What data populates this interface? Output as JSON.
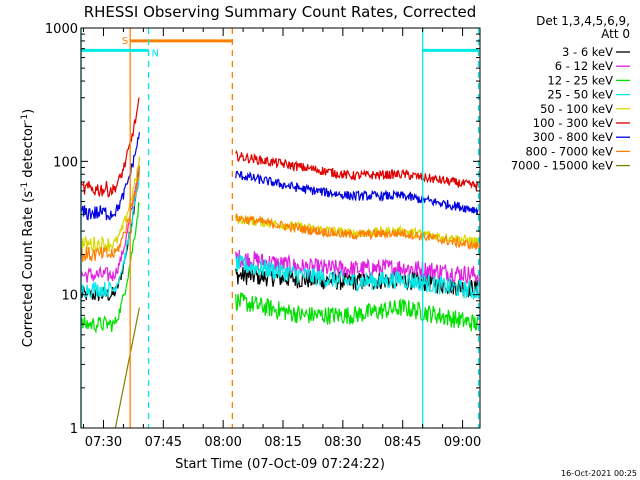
{
  "chart_data": {
    "type": "line",
    "title": "RHESSI Observing Summary Count Rates, Corrected",
    "xlabel": "Start Time (07-Oct-09 07:24:22)",
    "ylabel": "Corrected Count Rate (s",
    "ylabel_sup1": "-1",
    "ylabel_mid": " detector",
    "ylabel_sup2": "-1",
    "ylabel_end": ")",
    "yscale": "log",
    "ylim": [
      1,
      1000
    ],
    "xlim_minutes": [
      -5.63,
      94.37
    ],
    "x_ticks": [
      {
        "label": "07:30",
        "minute": 0
      },
      {
        "label": "07:45",
        "minute": 15
      },
      {
        "label": "08:00",
        "minute": 30
      },
      {
        "label": "08:15",
        "minute": 45
      },
      {
        "label": "08:30",
        "minute": 60
      },
      {
        "label": "08:45",
        "minute": 75
      },
      {
        "label": "09:00",
        "minute": 90
      }
    ],
    "y_ticks": [
      {
        "label": "1",
        "value": 1
      },
      {
        "label": "10",
        "value": 10
      },
      {
        "label": "100",
        "value": 100
      },
      {
        "label": "1000",
        "value": 1000
      }
    ],
    "legend": {
      "placement": "right",
      "header": [
        "Det 1,3,4,5,6,9,",
        "Att 0"
      ]
    },
    "series": [
      {
        "name": "3 - 6 keV",
        "color": "#000000",
        "pre": 10,
        "peak": 90,
        "post": [
          14,
          13,
          12.5,
          13,
          11
        ]
      },
      {
        "name": "6 - 12 keV",
        "color": "#e020e0",
        "pre": 14,
        "peak": 100,
        "post": [
          19,
          16,
          15.5,
          16,
          14
        ]
      },
      {
        "name": "12 - 25 keV",
        "color": "#00e000",
        "pre": 6,
        "peak": 50,
        "post": [
          9,
          7,
          7,
          8,
          6
        ]
      },
      {
        "name": "25 - 50 keV",
        "color": "#00e8e8",
        "pre": 11,
        "peak": 80,
        "post": [
          17,
          14,
          12.5,
          13,
          10.5
        ]
      },
      {
        "name": "50 - 100 keV",
        "color": "#d8d800",
        "pre": 24,
        "peak": 100,
        "post": [
          37,
          32,
          29,
          30,
          25
        ]
      },
      {
        "name": "100 - 300 keV",
        "color": "#e00000",
        "pre": 62,
        "peak": 290,
        "post": [
          110,
          90,
          78,
          80,
          65
        ]
      },
      {
        "name": "300 - 800 keV",
        "color": "#0000e0",
        "pre": 41,
        "peak": 160,
        "post": [
          80,
          62,
          55,
          55,
          43
        ]
      },
      {
        "name": "800 - 7000 keV",
        "color": "#ff8000",
        "pre": 20,
        "peak": 85,
        "post": [
          38,
          31,
          28,
          29,
          23
        ]
      },
      {
        "name": "7000 - 15000 keV",
        "color": "#808000",
        "pre": null,
        "peak": 8,
        "post": null
      }
    ],
    "annotations": {
      "saa_label": "S",
      "night_label": "N",
      "saa_start_minute": 6.7,
      "saa_end_minute": 32.3,
      "night_intervals": [
        [
          -5.63,
          11.3
        ],
        [
          80.0,
          94.0
        ]
      ],
      "saa_level": 800,
      "night_level": 680,
      "data_gap_minutes": [
        9.0,
        33.0
      ]
    },
    "timestamp": "16-Oct-2021 00:25"
  }
}
